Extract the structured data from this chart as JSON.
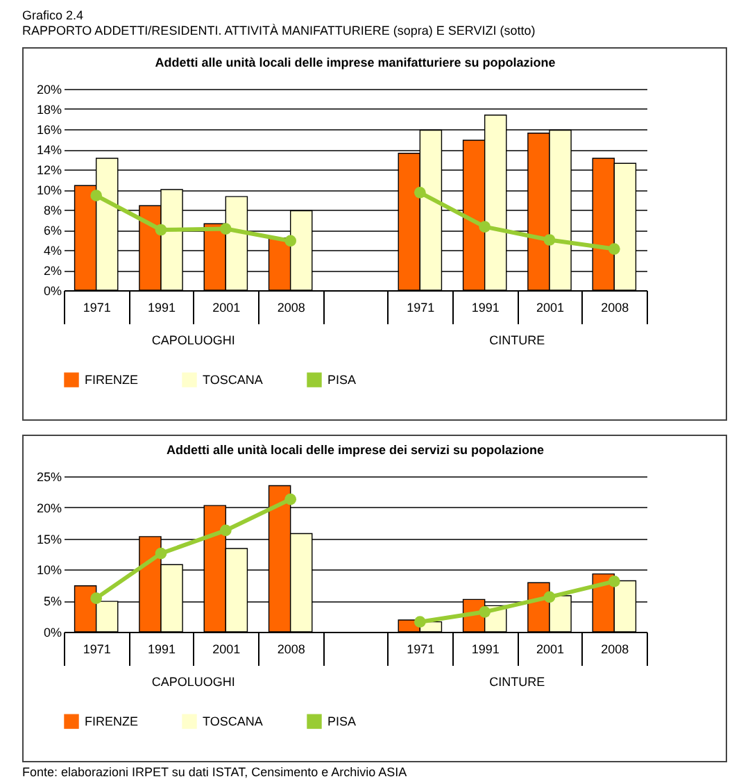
{
  "chart_data": [
    {
      "type": "bar",
      "title": "Addetti alle unità locali delle imprese manifatturiere su popolazione",
      "categories": [
        "1971",
        "1991",
        "2001",
        "2008",
        null,
        "1971",
        "1991",
        "2001",
        "2008"
      ],
      "series": [
        {
          "name": "FIRENZE",
          "color": "#ff6600",
          "values": [
            10.4,
            8.4,
            6.6,
            5.2,
            null,
            13.6,
            14.9,
            15.6,
            13.1
          ]
        },
        {
          "name": "TOSCANA",
          "color": "#ffffcc",
          "values": [
            13.1,
            10.0,
            9.3,
            7.9,
            null,
            15.9,
            17.4,
            15.9,
            12.6
          ]
        },
        {
          "name": "PISA",
          "color": "#99cc33",
          "type": "line",
          "values": [
            9.4,
            6.0,
            6.1,
            4.9,
            null,
            9.7,
            6.3,
            5.0,
            4.1
          ]
        }
      ],
      "ylim": [
        0,
        20
      ],
      "yticks": [
        {
          "value": 0,
          "label": "0%"
        },
        {
          "value": 2,
          "label": "2%"
        },
        {
          "value": 4,
          "label": "4%"
        },
        {
          "value": 6,
          "label": "6%"
        },
        {
          "value": 8,
          "label": "8%"
        },
        {
          "value": 10,
          "label": "10%"
        },
        {
          "value": 12,
          "label": "12%"
        },
        {
          "value": 14,
          "label": "14%"
        },
        {
          "value": 16,
          "label": "16%"
        },
        {
          "value": 18,
          "label": "18%"
        },
        {
          "value": 20,
          "label": "20%"
        }
      ],
      "grid": "y",
      "legend": "bottom",
      "marker": "circle",
      "annotations": [
        "Grafico 2.4",
        "RAPPORTO ADDETTI/RESIDENTI. ATTIVITÀ MANIFATTURIERE (sopra) E SERVIZI (sotto)",
        "CAPOLUOGHI",
        "CINTURE"
      ]
    },
    {
      "type": "bar",
      "title": "Addetti alle unità locali delle imprese dei servizi su popolazione",
      "categories": [
        "1971",
        "1991",
        "2001",
        "2008",
        null,
        "1971",
        "1991",
        "2001",
        "2008"
      ],
      "series": [
        {
          "name": "FIRENZE",
          "color": "#ff6600",
          "values": [
            7.4,
            15.3,
            20.3,
            23.5,
            null,
            1.9,
            5.2,
            7.9,
            9.3
          ]
        },
        {
          "name": "TOSCANA",
          "color": "#ffffcc",
          "values": [
            4.9,
            10.8,
            13.4,
            15.8,
            null,
            1.6,
            4.2,
            5.8,
            8.2
          ]
        },
        {
          "name": "PISA",
          "color": "#99cc33",
          "type": "line",
          "values": [
            5.4,
            12.6,
            16.3,
            21.3,
            null,
            1.6,
            3.2,
            5.6,
            8.1
          ]
        }
      ],
      "ylim": [
        0,
        25
      ],
      "yticks": [
        {
          "value": 0,
          "label": "0%"
        },
        {
          "value": 5,
          "label": "5%"
        },
        {
          "value": 10,
          "label": "10%"
        },
        {
          "value": 15,
          "label": "15%"
        },
        {
          "value": 20,
          "label": "20%"
        },
        {
          "value": 25,
          "label": "25%"
        }
      ],
      "grid": "y",
      "legend": "bottom",
      "marker": "circle",
      "annotations": [
        "CAPOLUOGHI",
        "CINTURE",
        "Fonte: elaborazioni IRPET su dati ISTAT, Censimento e Archivio ASIA"
      ]
    }
  ]
}
